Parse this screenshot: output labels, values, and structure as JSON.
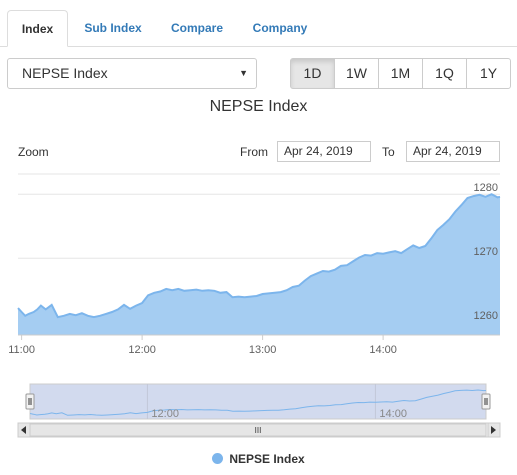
{
  "tabs": [
    {
      "label": "Index",
      "active": true
    },
    {
      "label": "Sub Index",
      "active": false
    },
    {
      "label": "Compare",
      "active": false
    },
    {
      "label": "Company",
      "active": false
    }
  ],
  "index_select": {
    "value": "NEPSE Index"
  },
  "range_buttons": [
    {
      "label": "1D",
      "active": true
    },
    {
      "label": "1W",
      "active": false
    },
    {
      "label": "1M",
      "active": false
    },
    {
      "label": "1Q",
      "active": false
    },
    {
      "label": "1Y",
      "active": false
    }
  ],
  "zoom_label": "Zoom",
  "from_label": "From",
  "from_date": "Apr 24, 2019",
  "to_label": "To",
  "to_date": "Apr 24, 2019",
  "navigator_handle_label": "III",
  "colors": {
    "series": "#7cb5ec",
    "series_fill": "#a5cdf2",
    "navigator_mask": "#d2daee"
  },
  "chart_data": {
    "type": "area",
    "title": "NEPSE Index",
    "series": [
      {
        "name": "NEPSE Index"
      }
    ],
    "x_ticks": [
      "11:00",
      "12:00",
      "13:00",
      "14:00"
    ],
    "navigator_ticks": [
      "12:00",
      "14:00"
    ],
    "y_ticks": [
      1260,
      1270,
      1280
    ],
    "ylim": [
      1258,
      1283
    ],
    "xlim": [
      10.97,
      14.97
    ],
    "x": [
      10.97,
      11.0,
      11.03,
      11.06,
      11.1,
      11.13,
      11.16,
      11.2,
      11.25,
      11.3,
      11.35,
      11.4,
      11.45,
      11.5,
      11.55,
      11.6,
      11.65,
      11.7,
      11.75,
      11.8,
      11.85,
      11.9,
      11.95,
      12.0,
      12.05,
      12.1,
      12.15,
      12.2,
      12.25,
      12.3,
      12.35,
      12.4,
      12.45,
      12.5,
      12.55,
      12.6,
      12.65,
      12.7,
      12.75,
      12.8,
      12.85,
      12.9,
      12.95,
      13.0,
      13.05,
      13.1,
      13.15,
      13.2,
      13.25,
      13.3,
      13.35,
      13.4,
      13.45,
      13.5,
      13.55,
      13.6,
      13.65,
      13.7,
      13.75,
      13.8,
      13.85,
      13.9,
      13.95,
      14.0,
      14.05,
      14.1,
      14.15,
      14.2,
      14.25,
      14.3,
      14.35,
      14.4,
      14.45,
      14.5,
      14.55,
      14.6,
      14.65,
      14.7,
      14.75,
      14.8,
      14.85,
      14.9,
      14.95,
      14.97
    ],
    "values": [
      1262.2,
      1261.6,
      1261.0,
      1261.3,
      1261.6,
      1262.0,
      1262.6,
      1262.0,
      1262.7,
      1260.8,
      1261.0,
      1261.3,
      1261.1,
      1261.4,
      1261.0,
      1260.8,
      1261.0,
      1261.3,
      1261.6,
      1262.0,
      1262.7,
      1262.1,
      1262.6,
      1263.0,
      1264.2,
      1264.6,
      1264.8,
      1265.2,
      1265.0,
      1265.2,
      1264.9,
      1265.0,
      1265.1,
      1264.9,
      1265.0,
      1264.9,
      1264.6,
      1264.7,
      1263.9,
      1264.0,
      1263.9,
      1264.0,
      1264.1,
      1264.4,
      1264.5,
      1264.6,
      1264.7,
      1265.0,
      1265.5,
      1265.7,
      1266.5,
      1267.2,
      1267.6,
      1268.0,
      1267.9,
      1268.2,
      1268.8,
      1268.9,
      1269.5,
      1270.1,
      1270.5,
      1270.4,
      1270.8,
      1270.7,
      1270.9,
      1271.1,
      1270.8,
      1271.4,
      1272.0,
      1271.6,
      1271.9,
      1273.1,
      1274.4,
      1275.2,
      1276.1,
      1277.3,
      1278.3,
      1279.4,
      1279.7,
      1279.9,
      1279.6,
      1280.0,
      1279.5,
      1279.6
    ]
  }
}
